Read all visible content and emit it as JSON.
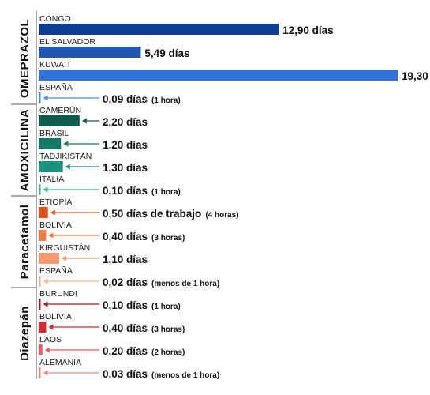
{
  "chart_data": {
    "type": "bar",
    "orientation": "horizontal",
    "unit": "días",
    "groups": [
      {
        "name": "OMEPRAZOL",
        "items": [
          {
            "country": "CONGO",
            "value": 12.9,
            "label": "12,90 días",
            "note": "",
            "color": "#0d3d91"
          },
          {
            "country": "EL SALVADOR",
            "value": 5.49,
            "label": "5,49 días",
            "note": "",
            "color": "#1f56b8"
          },
          {
            "country": "KUWAIT",
            "value": 19.3,
            "label": "19,30 días",
            "note": "",
            "color": "#2f74d6"
          },
          {
            "country": "ESPAÑA",
            "value": 0.09,
            "label": "0,09 días",
            "note": "(1 hora)",
            "color": "#4a8fe0"
          }
        ]
      },
      {
        "name": "AMOXICILINA",
        "items": [
          {
            "country": "CAMERÚN",
            "value": 2.2,
            "label": "2,20 días",
            "note": "",
            "color": "#0d5e4e"
          },
          {
            "country": "BRASIL",
            "value": 1.2,
            "label": "1,20 días",
            "note": "",
            "color": "#137a66"
          },
          {
            "country": "TADJIKISTÁN",
            "value": 1.3,
            "label": "1,30 días",
            "note": "",
            "color": "#1a9480"
          },
          {
            "country": "ITALIA",
            "value": 0.1,
            "label": "0,10 días",
            "note": "(1 hora)",
            "color": "#3fb5a0"
          }
        ]
      },
      {
        "name": "Paracetamol",
        "items": [
          {
            "country": "ETIOPÍA",
            "value": 0.5,
            "label": "0,50 días de trabajo",
            "note": "(4 horas)",
            "color": "#e0531c"
          },
          {
            "country": "BOLIVIA",
            "value": 0.4,
            "label": "0,40 días",
            "note": "(3 horas)",
            "color": "#f07a45"
          },
          {
            "country": "KIRGUISTÁN",
            "value": 1.1,
            "label": "1,10 días",
            "note": "",
            "color": "#f8986c"
          },
          {
            "country": "ESPAÑA",
            "value": 0.02,
            "label": "0,02 días",
            "note": "(menos de 1 hora)",
            "color": "#f7b896"
          }
        ]
      },
      {
        "name": "Diazepán",
        "items": [
          {
            "country": "BURUNDI",
            "value": 0.1,
            "label": "0,10 días",
            "note": "(1 hora)",
            "color": "#b8141d"
          },
          {
            "country": "BOLIVIA",
            "value": 0.4,
            "label": "0,40 días",
            "note": "(3 horas)",
            "color": "#d52b2f"
          },
          {
            "country": "LAOS",
            "value": 0.2,
            "label": "0,20 días",
            "note": "(2 horas)",
            "color": "#ec5a5a"
          },
          {
            "country": "ALEMANIA",
            "value": 0.03,
            "label": "0,03 días",
            "note": "(menos de 1 hora)",
            "color": "#f28585"
          }
        ]
      }
    ],
    "xlim": [
      0,
      19.3
    ],
    "grid": false,
    "legend": "none"
  }
}
